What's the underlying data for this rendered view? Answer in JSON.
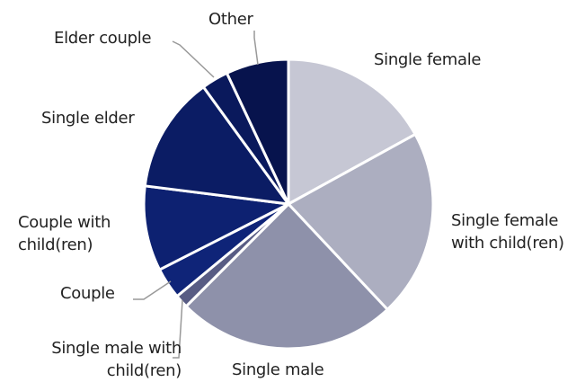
{
  "chart_data": {
    "type": "pie",
    "categories": [
      "Single female",
      "Single female with child(ren)",
      "Single male",
      "Single male with child(ren)",
      "Couple",
      "Couple with child(ren)",
      "Single elder",
      "Elder couple",
      "Other"
    ],
    "values": [
      17,
      21,
      24.5,
      1.5,
      3.5,
      9.5,
      13,
      3,
      7
    ],
    "colors": [
      "#c6c7d4",
      "#acaec0",
      "#8e91aa",
      "#585c84",
      "#0f2478",
      "#0d2171",
      "#0b1c64",
      "#0a195c",
      "#07134d"
    ]
  }
}
